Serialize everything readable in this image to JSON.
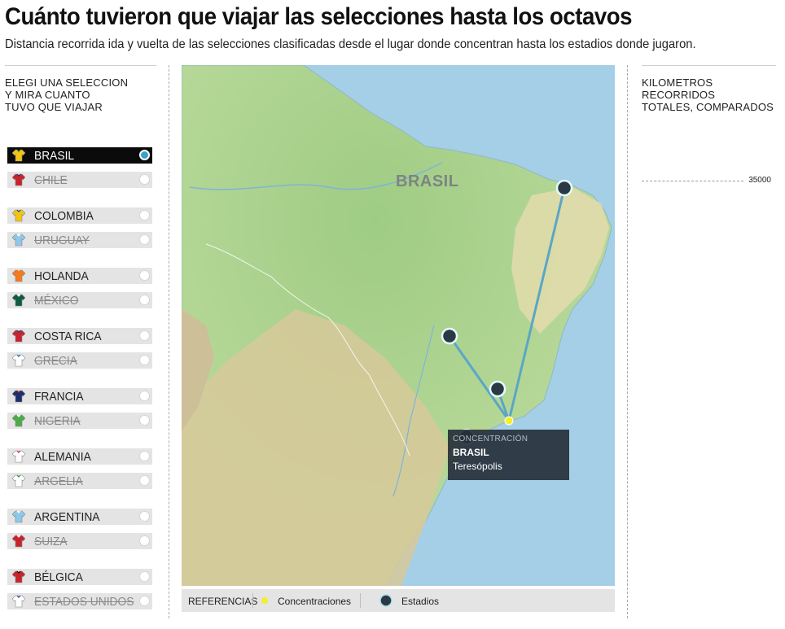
{
  "header": {
    "title": "Cuánto tuvieron que viajar las selecciones hasta los octavos",
    "subtitle": "Distancia recorrida ida y vuelta de las selecciones clasificadas desde el lugar donde concentran hasta los estadios donde jugaron."
  },
  "sidebar": {
    "instructions": "ELEGI UNA SELECCION\nY MIRA CUANTO\nTUVO QUE VIAJAR",
    "teams": [
      {
        "name": "BRASIL",
        "status": "selected",
        "shirt_color": "#f2c413",
        "collar": "#1f7a3a"
      },
      {
        "name": "CHILE",
        "status": "eliminated",
        "shirt_color": "#c8232c",
        "collar": "#1a3d8f"
      },
      {
        "name": "COLOMBIA",
        "status": "active",
        "shirt_color": "#f2c413",
        "collar": "#1a3d8f"
      },
      {
        "name": "URUGUAY",
        "status": "eliminated",
        "shirt_color": "#8fc8e8",
        "collar": "#ffffff"
      },
      {
        "name": "HOLANDA",
        "status": "active",
        "shirt_color": "#f47a20",
        "collar": "#f47a20"
      },
      {
        "name": "MÉXICO",
        "status": "eliminated",
        "shirt_color": "#0f5b3e",
        "collar": "#ffffff"
      },
      {
        "name": "COSTA RICA",
        "status": "active",
        "shirt_color": "#c8232c",
        "collar": "#1a3d8f"
      },
      {
        "name": "GRECIA",
        "status": "eliminated",
        "shirt_color": "#ffffff",
        "collar": "#1a5fb0"
      },
      {
        "name": "FRANCIA",
        "status": "active",
        "shirt_color": "#1b2f6e",
        "collar": "#c8232c"
      },
      {
        "name": "NIGERIA",
        "status": "eliminated",
        "shirt_color": "#4caa4a",
        "collar": "#ffffff"
      },
      {
        "name": "ALEMANIA",
        "status": "active",
        "shirt_color": "#ffffff",
        "collar": "#c8232c"
      },
      {
        "name": "ARGELIA",
        "status": "eliminated",
        "shirt_color": "#ffffff",
        "collar": "#2e8b3a"
      },
      {
        "name": "ARGENTINA",
        "status": "active",
        "shirt_color": "#8fc8e8",
        "collar": "#ffffff"
      },
      {
        "name": "SUIZA",
        "status": "eliminated",
        "shirt_color": "#c8232c",
        "collar": "#ffffff"
      },
      {
        "name": "BÉLGICA",
        "status": "active",
        "shirt_color": "#c8232c",
        "collar": "#000000"
      },
      {
        "name": "ESTADOS UNIDOS",
        "status": "eliminated",
        "shirt_color": "#ffffff",
        "collar": "#1a3d8f"
      }
    ]
  },
  "map": {
    "country_label": "BRASIL",
    "tooltip": {
      "kind": "CONCENTRACIÓN",
      "team": "BRASIL",
      "city": "Teresópolis"
    },
    "colors": {
      "route": "#5ba6c6",
      "concentration": "#f5ee2a",
      "stadium": "#2a3944"
    }
  },
  "legend": {
    "title": "REFERENCIAS",
    "concentration_label": "Concentraciones",
    "stadium_label": "Estadios"
  },
  "comparison": {
    "title": "KILOMETROS RECORRIDOS\nTOTALES, COMPARADOS",
    "scale_value": "35000"
  }
}
